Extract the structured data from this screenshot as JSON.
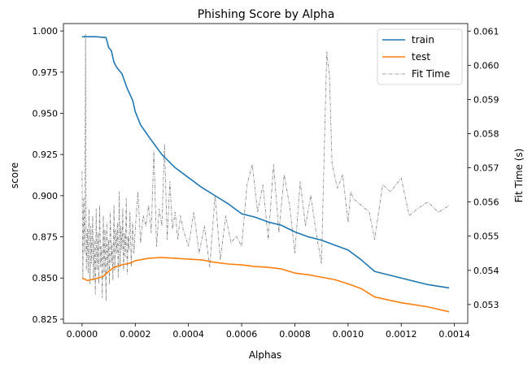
{
  "chart_data": {
    "type": "line",
    "title": "Phishing Score by Alpha",
    "xlabel": "Alphas",
    "ylabel": "score",
    "y2label": "Fit Time (s)",
    "xlim": [
      -7e-05,
      0.00145
    ],
    "ylim": [
      0.8225,
      1.0045
    ],
    "y2lim": [
      0.05245,
      0.06122
    ],
    "xticks": [
      0.0,
      0.0002,
      0.0004,
      0.0006,
      0.0008,
      0.001,
      0.0012,
      0.0014
    ],
    "xtick_labels": [
      "0.0000",
      "0.0002",
      "0.0004",
      "0.0006",
      "0.0008",
      "0.0010",
      "0.0012",
      "0.0014"
    ],
    "yticks": [
      0.825,
      0.85,
      0.875,
      0.9,
      0.925,
      0.95,
      0.975,
      1.0
    ],
    "ytick_labels": [
      "0.825",
      "0.850",
      "0.875",
      "0.900",
      "0.925",
      "0.950",
      "0.975",
      "1.000"
    ],
    "y2ticks": [
      0.053,
      0.054,
      0.055,
      0.056,
      0.057,
      0.058,
      0.059,
      0.06,
      0.061
    ],
    "y2tick_labels": [
      "0.053",
      "0.054",
      "0.055",
      "0.056",
      "0.057",
      "0.058",
      "0.059",
      "0.060",
      "0.061"
    ],
    "grid": false,
    "legend": "top-right",
    "series": [
      {
        "name": "train",
        "color": "#1f77b4",
        "axis": "left",
        "style": "solid",
        "x": [
          0.0,
          5e-05,
          9e-05,
          0.0001,
          0.00011,
          0.00012,
          0.00013,
          0.00015,
          0.00017,
          0.00019,
          0.0002,
          0.00022,
          0.00025,
          0.0003,
          0.00035,
          0.0004,
          0.00045,
          0.0005,
          0.00055,
          0.0006,
          0.00065,
          0.0007,
          0.00075,
          0.0008,
          0.00085,
          0.0009,
          0.00095,
          0.001,
          0.00105,
          0.0011,
          0.0012,
          0.0013,
          0.00138
        ],
        "y": [
          0.9965,
          0.9965,
          0.996,
          0.99,
          0.988,
          0.981,
          0.978,
          0.974,
          0.965,
          0.958,
          0.951,
          0.943,
          0.936,
          0.925,
          0.917,
          0.911,
          0.905,
          0.9,
          0.895,
          0.889,
          0.887,
          0.884,
          0.882,
          0.878,
          0.875,
          0.873,
          0.87,
          0.867,
          0.861,
          0.854,
          0.85,
          0.846,
          0.844
        ]
      },
      {
        "name": "test",
        "color": "#ff7f0e",
        "axis": "left",
        "style": "solid",
        "x": [
          0.0,
          2e-05,
          5e-05,
          8e-05,
          0.0001,
          0.00012,
          0.00015,
          0.00018,
          0.0002,
          0.00025,
          0.0003,
          0.00035,
          0.0004,
          0.00045,
          0.0005,
          0.00055,
          0.0006,
          0.00065,
          0.0007,
          0.00075,
          0.0008,
          0.00085,
          0.0009,
          0.00095,
          0.001,
          0.00105,
          0.0011,
          0.0012,
          0.0013,
          0.00138
        ],
        "y": [
          0.85,
          0.8485,
          0.8495,
          0.851,
          0.854,
          0.8565,
          0.858,
          0.859,
          0.8605,
          0.862,
          0.8625,
          0.862,
          0.8615,
          0.861,
          0.8595,
          0.8585,
          0.858,
          0.857,
          0.8565,
          0.8555,
          0.853,
          0.852,
          0.8505,
          0.849,
          0.8465,
          0.8435,
          0.8385,
          0.835,
          0.8325,
          0.8295
        ]
      },
      {
        "name": "Fit Time",
        "color": "#808080",
        "axis": "right",
        "style": "dashdot",
        "x": [
          0.0,
          3e-06,
          6e-06,
          1e-05,
          1.3e-05,
          1.6e-05,
          2e-05,
          2.3e-05,
          2.6e-05,
          3e-05,
          3.3e-05,
          3.6e-05,
          4e-05,
          4.3e-05,
          4.6e-05,
          5e-05,
          5.3e-05,
          5.6e-05,
          6e-05,
          6.3e-05,
          6.6e-05,
          7e-05,
          7.3e-05,
          7.6e-05,
          8e-05,
          8.3e-05,
          8.6e-05,
          9e-05,
          9.3e-05,
          9.6e-05,
          0.0001,
          0.000103,
          0.000106,
          0.00011,
          0.000113,
          0.000116,
          0.00012,
          0.000123,
          0.000126,
          0.00013,
          0.000133,
          0.000136,
          0.00014,
          0.000143,
          0.000146,
          0.00015,
          0.000153,
          0.000156,
          0.00016,
          0.000163,
          0.000166,
          0.00017,
          0.000173,
          0.000176,
          0.00018,
          0.000185,
          0.00019,
          0.000195,
          0.0002,
          0.00021,
          0.00022,
          0.00023,
          0.00024,
          0.00025,
          0.00026,
          0.00027,
          0.00028,
          0.00029,
          0.0003,
          0.00031,
          0.00032,
          0.00033,
          0.00034,
          0.00035,
          0.00036,
          0.00037,
          0.00038,
          0.0004,
          0.00042,
          0.00044,
          0.00046,
          0.00048,
          0.0005,
          0.00052,
          0.00054,
          0.00056,
          0.00058,
          0.0006,
          0.00062,
          0.00064,
          0.00066,
          0.00068,
          0.0007,
          0.00072,
          0.00074,
          0.00076,
          0.00078,
          0.0008,
          0.00082,
          0.00084,
          0.00086,
          0.00088,
          0.0009,
          0.00092,
          0.00093,
          0.00094,
          0.00096,
          0.00098,
          0.001,
          0.00101,
          0.00102,
          0.00105,
          0.00108,
          0.0011,
          0.00113,
          0.00116,
          0.0012,
          0.00123,
          0.00126,
          0.0013,
          0.00134,
          0.00138
        ],
        "y": [
          0.0569,
          0.0538,
          0.0561,
          0.0545,
          0.0609,
          0.054,
          0.0552,
          0.0539,
          0.0558,
          0.0536,
          0.0553,
          0.0542,
          0.0556,
          0.0537,
          0.0549,
          0.0533,
          0.0558,
          0.054,
          0.0551,
          0.0536,
          0.0559,
          0.0541,
          0.0547,
          0.0532,
          0.0556,
          0.0539,
          0.0552,
          0.0531,
          0.0554,
          0.054,
          0.0549,
          0.0536,
          0.0557,
          0.0542,
          0.0548,
          0.0537,
          0.0559,
          0.054,
          0.0552,
          0.0545,
          0.0554,
          0.0538,
          0.0563,
          0.0541,
          0.0553,
          0.0546,
          0.0558,
          0.054,
          0.0551,
          0.0544,
          0.0561,
          0.0539,
          0.055,
          0.0546,
          0.0557,
          0.0541,
          0.0554,
          0.0545,
          0.0552,
          0.0563,
          0.0548,
          0.0556,
          0.0553,
          0.0559,
          0.0551,
          0.0575,
          0.0547,
          0.0558,
          0.0553,
          0.0577,
          0.0549,
          0.0566,
          0.0552,
          0.0557,
          0.0549,
          0.0556,
          0.0552,
          0.0547,
          0.0557,
          0.0545,
          0.0553,
          0.0541,
          0.0562,
          0.0543,
          0.0556,
          0.0548,
          0.055,
          0.0547,
          0.0565,
          0.0571,
          0.0557,
          0.0565,
          0.0549,
          0.0571,
          0.0551,
          0.0568,
          0.0559,
          0.0545,
          0.0566,
          0.0553,
          0.0562,
          0.0551,
          0.0542,
          0.0604,
          0.0597,
          0.0571,
          0.0564,
          0.0568,
          0.0554,
          0.0563,
          0.0561,
          0.0559,
          0.0557,
          0.0549,
          0.0565,
          0.0563,
          0.0567,
          0.0556,
          0.0558,
          0.056,
          0.0557,
          0.0559
        ]
      }
    ]
  }
}
